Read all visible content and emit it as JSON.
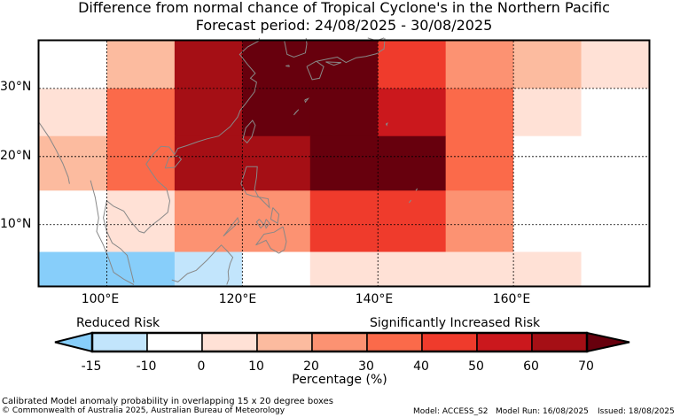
{
  "title_line1": "Difference from normal chance of Tropical Cyclone's in the Northern Pacific",
  "title_line2": "Forecast period: 24/08/2025 - 30/08/2025",
  "map": {
    "lon_range": [
      90,
      180
    ],
    "lat_range": [
      1,
      37
    ],
    "lon_labels": [
      "100°E",
      "120°E",
      "140°E",
      "160°E"
    ],
    "lat_labels": [
      "30°N",
      "20°N",
      "10°N"
    ],
    "lon_grid": [
      100,
      120,
      140,
      160
    ],
    "lat_grid": [
      30,
      20,
      10
    ],
    "cells": [
      {
        "lon": [
          90,
          100
        ],
        "lat": [
          30,
          37
        ],
        "band": 2
      },
      {
        "lon": [
          100,
          110
        ],
        "lat": [
          30,
          37
        ],
        "band": 4
      },
      {
        "lon": [
          110,
          120
        ],
        "lat": [
          30,
          37
        ],
        "band": 9
      },
      {
        "lon": [
          120,
          130
        ],
        "lat": [
          30,
          37
        ],
        "band": 10
      },
      {
        "lon": [
          130,
          140
        ],
        "lat": [
          30,
          37
        ],
        "band": 10
      },
      {
        "lon": [
          140,
          150
        ],
        "lat": [
          30,
          37
        ],
        "band": 7
      },
      {
        "lon": [
          150,
          160
        ],
        "lat": [
          30,
          37
        ],
        "band": 5
      },
      {
        "lon": [
          160,
          170
        ],
        "lat": [
          30,
          37
        ],
        "band": 4
      },
      {
        "lon": [
          170,
          180
        ],
        "lat": [
          30,
          37
        ],
        "band": 3
      },
      {
        "lon": [
          90,
          100
        ],
        "lat": [
          23,
          30
        ],
        "band": 3
      },
      {
        "lon": [
          100,
          110
        ],
        "lat": [
          23,
          30
        ],
        "band": 6
      },
      {
        "lon": [
          110,
          120
        ],
        "lat": [
          23,
          30
        ],
        "band": 9
      },
      {
        "lon": [
          120,
          130
        ],
        "lat": [
          23,
          30
        ],
        "band": 10
      },
      {
        "lon": [
          130,
          140
        ],
        "lat": [
          23,
          30
        ],
        "band": 10
      },
      {
        "lon": [
          140,
          150
        ],
        "lat": [
          23,
          30
        ],
        "band": 8
      },
      {
        "lon": [
          150,
          160
        ],
        "lat": [
          23,
          30
        ],
        "band": 6
      },
      {
        "lon": [
          160,
          170
        ],
        "lat": [
          23,
          30
        ],
        "band": 3
      },
      {
        "lon": [
          170,
          180
        ],
        "lat": [
          23,
          30
        ],
        "band": 2
      },
      {
        "lon": [
          90,
          100
        ],
        "lat": [
          15,
          23
        ],
        "band": 4
      },
      {
        "lon": [
          100,
          110
        ],
        "lat": [
          15,
          23
        ],
        "band": 6
      },
      {
        "lon": [
          110,
          120
        ],
        "lat": [
          15,
          23
        ],
        "band": 9
      },
      {
        "lon": [
          120,
          130
        ],
        "lat": [
          15,
          23
        ],
        "band": 9
      },
      {
        "lon": [
          130,
          140
        ],
        "lat": [
          15,
          23
        ],
        "band": 10
      },
      {
        "lon": [
          140,
          150
        ],
        "lat": [
          15,
          23
        ],
        "band": 10
      },
      {
        "lon": [
          150,
          160
        ],
        "lat": [
          15,
          23
        ],
        "band": 6
      },
      {
        "lon": [
          160,
          170
        ],
        "lat": [
          15,
          23
        ],
        "band": 2
      },
      {
        "lon": [
          170,
          180
        ],
        "lat": [
          15,
          23
        ],
        "band": 2
      },
      {
        "lon": [
          90,
          100
        ],
        "lat": [
          6,
          15
        ],
        "band": 2
      },
      {
        "lon": [
          100,
          110
        ],
        "lat": [
          6,
          15
        ],
        "band": 3
      },
      {
        "lon": [
          110,
          120
        ],
        "lat": [
          6,
          15
        ],
        "band": 5
      },
      {
        "lon": [
          120,
          130
        ],
        "lat": [
          6,
          15
        ],
        "band": 5
      },
      {
        "lon": [
          130,
          140
        ],
        "lat": [
          6,
          15
        ],
        "band": 7
      },
      {
        "lon": [
          140,
          150
        ],
        "lat": [
          6,
          15
        ],
        "band": 7
      },
      {
        "lon": [
          150,
          160
        ],
        "lat": [
          6,
          15
        ],
        "band": 5
      },
      {
        "lon": [
          160,
          170
        ],
        "lat": [
          6,
          15
        ],
        "band": 2
      },
      {
        "lon": [
          170,
          180
        ],
        "lat": [
          6,
          15
        ],
        "band": 2
      },
      {
        "lon": [
          90,
          100
        ],
        "lat": [
          1,
          6
        ],
        "band": 0
      },
      {
        "lon": [
          100,
          110
        ],
        "lat": [
          1,
          6
        ],
        "band": 0
      },
      {
        "lon": [
          110,
          120
        ],
        "lat": [
          1,
          6
        ],
        "band": 1
      },
      {
        "lon": [
          120,
          130
        ],
        "lat": [
          1,
          6
        ],
        "band": 2
      },
      {
        "lon": [
          130,
          140
        ],
        "lat": [
          1,
          6
        ],
        "band": 3
      },
      {
        "lon": [
          140,
          150
        ],
        "lat": [
          1,
          6
        ],
        "band": 3
      },
      {
        "lon": [
          150,
          160
        ],
        "lat": [
          1,
          6
        ],
        "band": 3
      },
      {
        "lon": [
          160,
          170
        ],
        "lat": [
          1,
          6
        ],
        "band": 3
      },
      {
        "lon": [
          170,
          180
        ],
        "lat": [
          1,
          6
        ],
        "band": 2
      }
    ],
    "coastlines": [
      [
        [
          90,
          25
        ],
        [
          91.5,
          22.8
        ],
        [
          92.5,
          21
        ],
        [
          93.5,
          19
        ],
        [
          94.3,
          17
        ],
        [
          94.5,
          16
        ]
      ],
      [
        [
          97.6,
          16.5
        ],
        [
          98.3,
          14
        ],
        [
          98.8,
          11
        ],
        [
          98.5,
          9
        ],
        [
          99.5,
          7
        ],
        [
          100.3,
          5
        ],
        [
          101,
          3
        ],
        [
          102.5,
          2
        ],
        [
          104,
          1.2
        ]
      ],
      [
        [
          104,
          1.5
        ],
        [
          103.5,
          3.5
        ],
        [
          103,
          5.5
        ],
        [
          102,
          6.5
        ],
        [
          100.8,
          7.3
        ],
        [
          100,
          9
        ],
        [
          99.5,
          11
        ],
        [
          100,
          13.5
        ],
        [
          101,
          12.7
        ],
        [
          102.5,
          12
        ],
        [
          103.5,
          10.5
        ],
        [
          104.8,
          9
        ],
        [
          105.5,
          8.8
        ],
        [
          106.5,
          9.8
        ],
        [
          107.8,
          10.8
        ],
        [
          109,
          11.8
        ],
        [
          109.3,
          13.5
        ],
        [
          108.8,
          15.3
        ],
        [
          107.5,
          16.4
        ],
        [
          106.5,
          17.8
        ],
        [
          105.8,
          18.9
        ],
        [
          106.8,
          20.3
        ],
        [
          108,
          21.5
        ],
        [
          109.2,
          21.4
        ],
        [
          110,
          20.3
        ],
        [
          110.5,
          21.2
        ],
        [
          111.8,
          21.6
        ],
        [
          113.5,
          22.2
        ],
        [
          114.8,
          22.6
        ],
        [
          116.5,
          23
        ],
        [
          118.2,
          24.4
        ],
        [
          119.3,
          25.8
        ],
        [
          119.7,
          26.8
        ],
        [
          120.5,
          27.8
        ],
        [
          121.8,
          29.5
        ],
        [
          122.1,
          30.9
        ],
        [
          121.2,
          31.5
        ],
        [
          121.9,
          32.2
        ],
        [
          120.8,
          33.5
        ],
        [
          119.6,
          35
        ],
        [
          120.8,
          36.1
        ],
        [
          122.5,
          37
        ],
        [
          122.5,
          37.4
        ]
      ],
      [
        [
          108.6,
          18.3
        ],
        [
          110,
          18.4
        ],
        [
          111,
          19.6
        ],
        [
          110.5,
          20.1
        ],
        [
          109.2,
          19.9
        ],
        [
          108.6,
          18.3
        ]
      ],
      [
        [
          120.1,
          22.6
        ],
        [
          120.7,
          22
        ],
        [
          121.4,
          22.9
        ],
        [
          121.9,
          24.6
        ],
        [
          121.5,
          25.3
        ],
        [
          120.5,
          24.2
        ],
        [
          120.1,
          22.6
        ]
      ],
      [
        [
          120.6,
          18.5
        ],
        [
          122.2,
          18.5
        ],
        [
          122.1,
          17
        ],
        [
          121.8,
          15.2
        ],
        [
          122.3,
          14.2
        ],
        [
          124,
          12.5
        ],
        [
          123.8,
          13.8
        ],
        [
          121.5,
          14.2
        ],
        [
          120.6,
          14.5
        ],
        [
          119.8,
          16
        ],
        [
          120.3,
          17.5
        ],
        [
          120.6,
          18.5
        ]
      ],
      [
        [
          124.5,
          12.5
        ],
        [
          125.4,
          11.5
        ],
        [
          125.2,
          10.2
        ],
        [
          124.2,
          10.8
        ],
        [
          124.5,
          12.5
        ]
      ],
      [
        [
          122.5,
          10.8
        ],
        [
          123.2,
          10
        ],
        [
          122.7,
          9.5
        ],
        [
          122.1,
          10.4
        ],
        [
          122.5,
          10.8
        ]
      ],
      [
        [
          123.5,
          10.8
        ],
        [
          124,
          10.2
        ],
        [
          123.5,
          9.5
        ],
        [
          123.3,
          10.2
        ],
        [
          123.5,
          10.8
        ]
      ],
      [
        [
          126,
          9.7
        ],
        [
          126.5,
          7.5
        ],
        [
          126.2,
          6.3
        ],
        [
          125.4,
          5.8
        ],
        [
          124.2,
          6.5
        ],
        [
          123.5,
          7.7
        ],
        [
          122,
          7
        ],
        [
          123.2,
          8.6
        ],
        [
          124.7,
          8.9
        ],
        [
          126,
          9.7
        ]
      ],
      [
        [
          117.2,
          8.3
        ],
        [
          119.5,
          10.4
        ],
        [
          119.3,
          11
        ],
        [
          117.2,
          8.3
        ]
      ],
      [
        [
          109.6,
          1.9
        ],
        [
          110.5,
          1.6
        ],
        [
          111.9,
          2.8
        ],
        [
          113.2,
          3.3
        ],
        [
          114.8,
          4.8
        ],
        [
          116.1,
          6.2
        ],
        [
          116.9,
          7
        ],
        [
          117.7,
          6.2
        ],
        [
          118.6,
          5.2
        ],
        [
          118.2,
          4.3
        ],
        [
          117.9,
          3.1
        ],
        [
          118,
          2
        ],
        [
          117.7,
          1.2
        ]
      ],
      [
        [
          129.5,
          33.2
        ],
        [
          130.3,
          31.3
        ],
        [
          131.4,
          31.5
        ],
        [
          132,
          33.2
        ],
        [
          130.9,
          34
        ],
        [
          129.5,
          33.2
        ]
      ],
      [
        [
          131,
          34
        ],
        [
          132.5,
          34.3
        ],
        [
          134,
          34.6
        ],
        [
          135.3,
          33.8
        ],
        [
          136.8,
          34.5
        ],
        [
          138.2,
          34.7
        ],
        [
          139.8,
          35.1
        ],
        [
          140.9,
          35.8
        ],
        [
          141,
          37
        ],
        [
          141,
          37.4
        ]
      ],
      [
        [
          132.3,
          33.9
        ],
        [
          133.5,
          33.4
        ],
        [
          134.6,
          33.8
        ],
        [
          132.3,
          33.9
        ]
      ],
      [
        [
          140.9,
          37.4
        ],
        [
          139.8,
          37
        ],
        [
          138.5,
          37.4
        ]
      ],
      [
        [
          126.2,
          37
        ],
        [
          126.6,
          35
        ],
        [
          127.6,
          34.6
        ],
        [
          129.3,
          35.2
        ],
        [
          129.5,
          36.5
        ],
        [
          129.4,
          37.4
        ]
      ],
      [
        [
          127.8,
          26.4
        ],
        [
          128.3,
          26.9
        ],
        [
          127.6,
          26.1
        ],
        [
          127.8,
          26.4
        ]
      ],
      [
        [
          126.9,
          33.4
        ],
        [
          126.4,
          33.3
        ],
        [
          126.9,
          33.2
        ],
        [
          126.9,
          33.4
        ]
      ],
      [
        [
          129.2,
          28.3
        ],
        [
          129.7,
          28.5
        ],
        [
          129.3,
          28
        ],
        [
          129.2,
          28.3
        ]
      ],
      [
        [
          141.2,
          24.8
        ],
        [
          141.4,
          24.9
        ],
        [
          141.3,
          24.6
        ],
        [
          141.2,
          24.8
        ]
      ],
      [
        [
          145.7,
          15.1
        ],
        [
          145.8,
          15.3
        ],
        [
          145.6,
          15
        ],
        [
          145.7,
          15.1
        ]
      ],
      [
        [
          144.7,
          13.4
        ],
        [
          144.9,
          13.6
        ],
        [
          144.6,
          13.2
        ],
        [
          144.7,
          13.4
        ]
      ]
    ]
  },
  "colors": {
    "bands": [
      "#87cefa",
      "#c2e5fc",
      "#ffffff",
      "#ffe1d6",
      "#fcbb9f",
      "#fc9272",
      "#fb6a4a",
      "#ef3b2c",
      "#cb181d",
      "#a50f15",
      "#67000d"
    ],
    "grid": "#000000",
    "coast": "#888888"
  },
  "colorbar": {
    "tick_labels": [
      "-15",
      "-10",
      "0",
      "10",
      "20",
      "30",
      "40",
      "50",
      "60",
      "70"
    ],
    "left_label": "Reduced Risk",
    "right_label": "Significantly Increased Risk",
    "axis_label": "Percentage (%)"
  },
  "footer": {
    "line1": "Calibrated Model anomaly probability in overlapping 15 x 20 degree boxes",
    "copyright": "© Commonwealth of Australia 2025, Australian Bureau of Meteorology",
    "model": "Model: ACCESS_S2",
    "model_run": "Model Run: 16/08/2025",
    "issued": "Issued: 18/08/2025"
  }
}
